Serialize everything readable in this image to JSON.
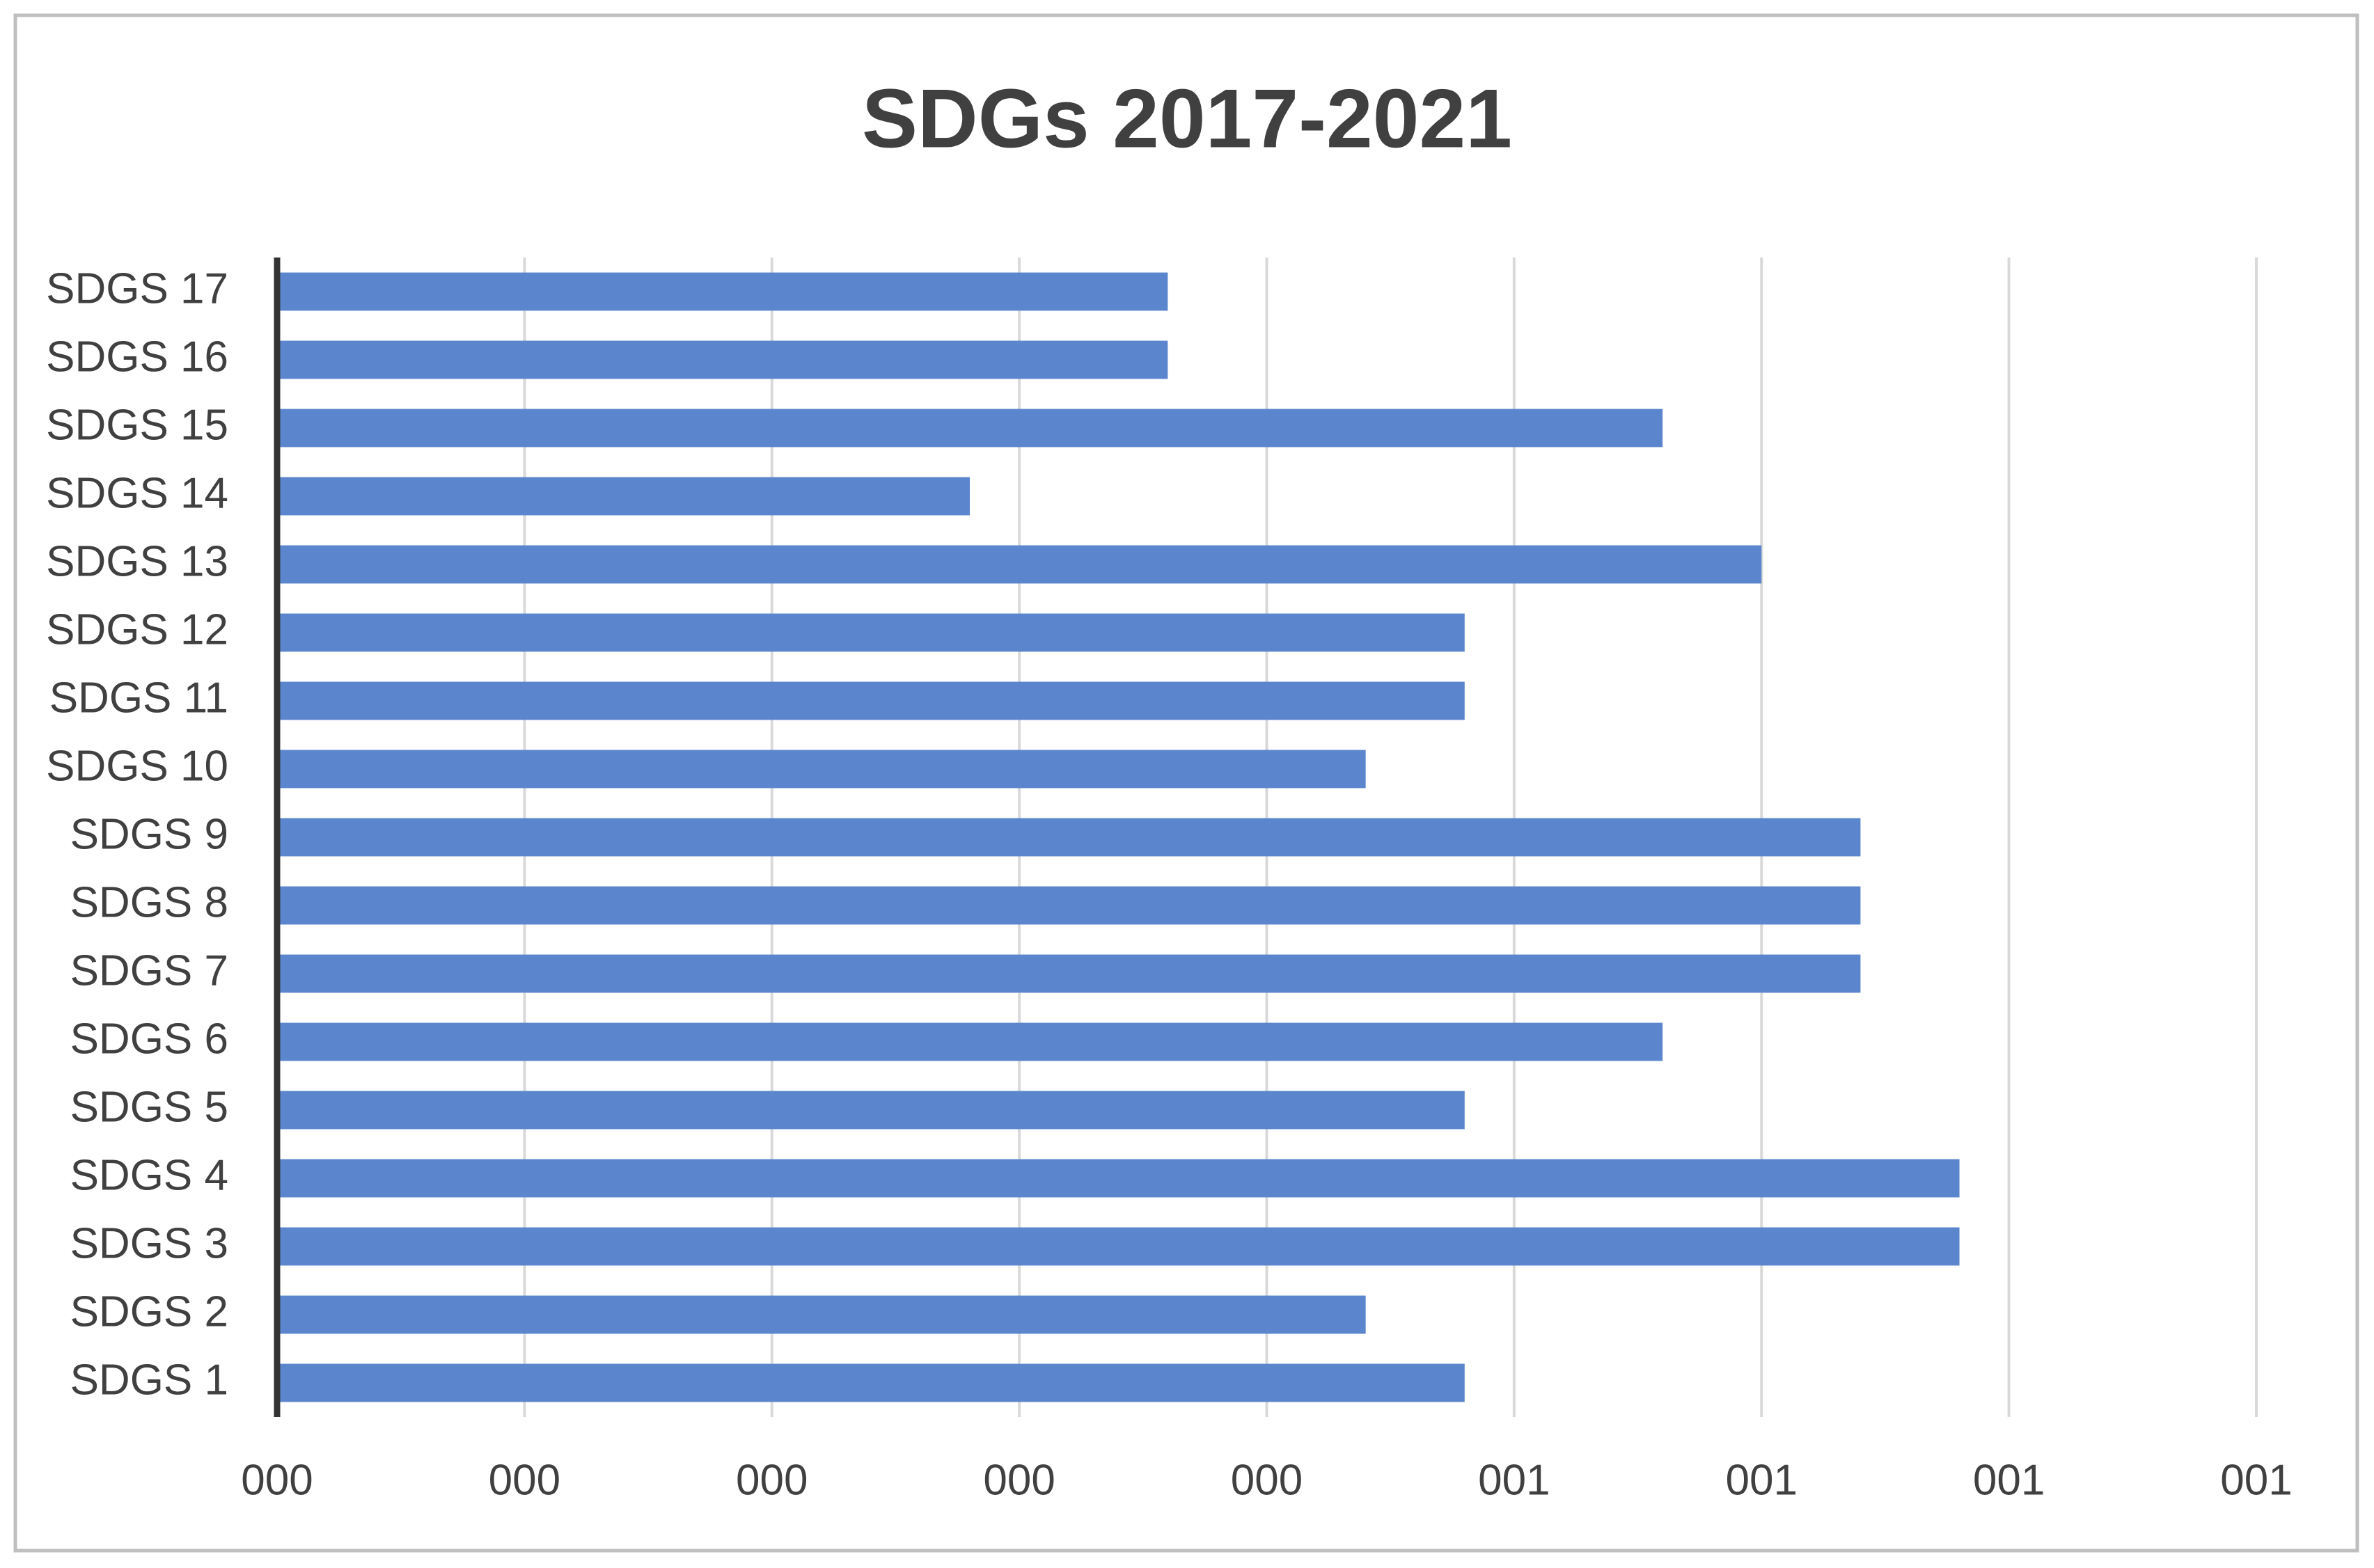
{
  "chart_data": {
    "type": "hbar",
    "title": "SDGs 2017-2021",
    "categories": [
      "SDGS 1",
      "SDGS 2",
      "SDGS 3",
      "SDGS 4",
      "SDGS 5",
      "SDGS 6",
      "SDGS 7",
      "SDGS 8",
      "SDGS 9",
      "SDGS 10",
      "SDGS 11",
      "SDGS 12",
      "SDGS 13",
      "SDGS 14",
      "SDGS 15",
      "SDGS 16",
      "SDGS 17"
    ],
    "values": [
      0.96,
      0.88,
      1.36,
      1.36,
      0.96,
      1.12,
      1.28,
      1.28,
      1.28,
      0.88,
      0.96,
      0.96,
      1.2,
      0.56,
      1.12,
      0.72,
      0.72
    ],
    "color": "#5b86cd",
    "xlim": [
      0,
      1.6
    ],
    "xticks": [
      {
        "value": 0,
        "label": "000"
      },
      {
        "value": 0.2,
        "label": "000"
      },
      {
        "value": 0.4,
        "label": "000"
      },
      {
        "value": 0.6,
        "label": "000"
      },
      {
        "value": 0.8,
        "label": "000"
      },
      {
        "value": 1.0,
        "label": "001"
      },
      {
        "value": 1.2,
        "label": "001"
      },
      {
        "value": 1.4,
        "label": "001"
      },
      {
        "value": 1.6,
        "label": "001"
      }
    ],
    "grid": true
  }
}
